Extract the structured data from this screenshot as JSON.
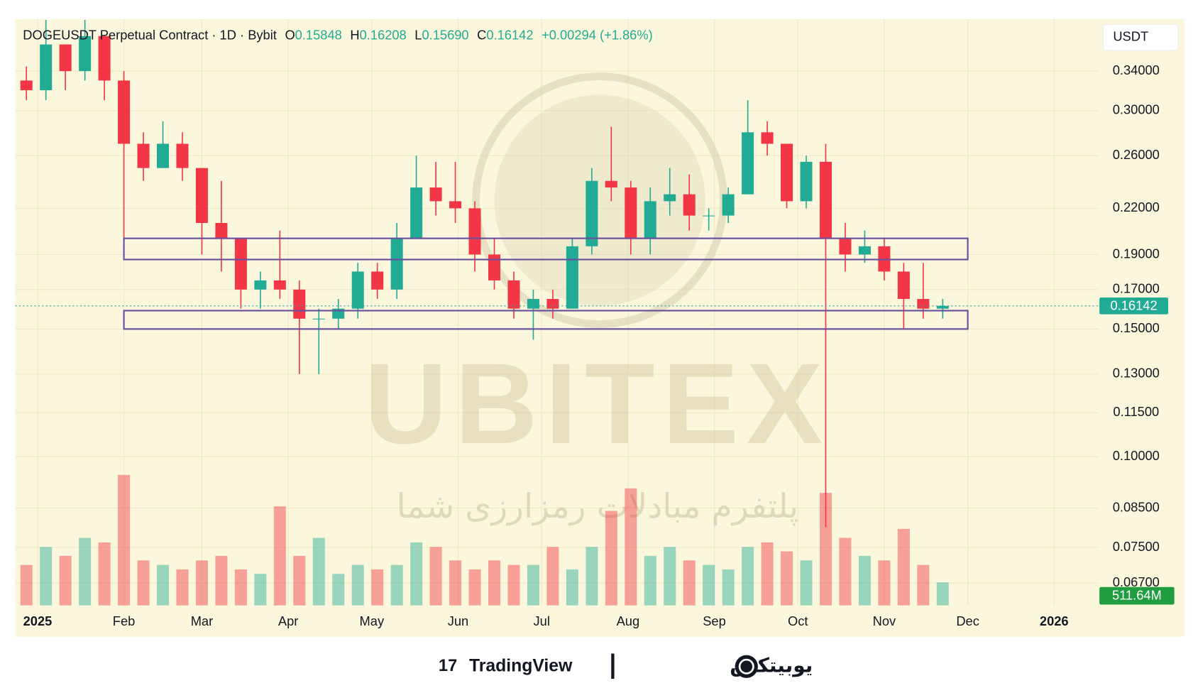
{
  "chart_data": {
    "type": "candlestick",
    "header": {
      "symbol": "DOGEUSDT Perpetual Contract · 1D · Bybit",
      "o": "O",
      "o_value": "0.15848",
      "h": "H",
      "h_value": "0.16208",
      "l": "L",
      "l_value": "0.15690",
      "c": "C",
      "c_value": "0.16142",
      "change": "+0.00294 (+1.86%)"
    },
    "currency": "USDT",
    "watermark": {
      "brand": "UBITEX",
      "tagline": "پلتفرم مبادلات رمزارزی شما"
    },
    "footer": {
      "left": "TradingView",
      "right": "یوبیتکس"
    },
    "x": [
      -4,
      3,
      10,
      17,
      24,
      31,
      38,
      45,
      52,
      59,
      66,
      73,
      80,
      87,
      94,
      101,
      108,
      115,
      122,
      129,
      136,
      143,
      150,
      157,
      164,
      171,
      178,
      185,
      192,
      199,
      206,
      213,
      220,
      227,
      234,
      241,
      248,
      255,
      262,
      269,
      276,
      283,
      290,
      297,
      304,
      311,
      318,
      325
    ],
    "open": [
      0.33,
      0.32,
      0.37,
      0.34,
      0.38,
      0.33,
      0.27,
      0.25,
      0.27,
      0.25,
      0.21,
      0.2,
      0.17,
      0.175,
      0.17,
      0.155,
      0.155,
      0.16,
      0.18,
      0.17,
      0.2,
      0.235,
      0.225,
      0.22,
      0.19,
      0.175,
      0.16,
      0.165,
      0.16,
      0.195,
      0.24,
      0.235,
      0.2,
      0.225,
      0.23,
      0.215,
      0.215,
      0.23,
      0.28,
      0.27,
      0.225,
      0.255,
      0.2,
      0.19,
      0.195,
      0.18,
      0.165,
      0.16
    ],
    "high": [
      0.345,
      0.4,
      0.37,
      0.4,
      0.38,
      0.34,
      0.28,
      0.29,
      0.28,
      0.25,
      0.24,
      0.2,
      0.18,
      0.205,
      0.175,
      0.16,
      0.165,
      0.185,
      0.185,
      0.21,
      0.26,
      0.255,
      0.255,
      0.225,
      0.2,
      0.18,
      0.17,
      0.17,
      0.2,
      0.25,
      0.285,
      0.24,
      0.235,
      0.25,
      0.245,
      0.22,
      0.235,
      0.31,
      0.29,
      0.27,
      0.26,
      0.27,
      0.21,
      0.205,
      0.2,
      0.185,
      0.185,
      0.165
    ],
    "low": [
      0.31,
      0.31,
      0.32,
      0.33,
      0.31,
      0.2,
      0.24,
      0.25,
      0.24,
      0.19,
      0.18,
      0.16,
      0.16,
      0.165,
      0.13,
      0.13,
      0.15,
      0.155,
      0.165,
      0.165,
      0.2,
      0.215,
      0.21,
      0.18,
      0.17,
      0.155,
      0.145,
      0.155,
      0.16,
      0.19,
      0.225,
      0.19,
      0.19,
      0.215,
      0.205,
      0.205,
      0.21,
      0.23,
      0.26,
      0.22,
      0.22,
      0.08,
      0.18,
      0.185,
      0.175,
      0.15,
      0.155,
      0.155
    ],
    "close": [
      0.32,
      0.37,
      0.34,
      0.38,
      0.33,
      0.27,
      0.25,
      0.27,
      0.25,
      0.21,
      0.2,
      0.17,
      0.175,
      0.17,
      0.155,
      0.155,
      0.16,
      0.18,
      0.17,
      0.2,
      0.235,
      0.225,
      0.22,
      0.19,
      0.175,
      0.16,
      0.165,
      0.16,
      0.195,
      0.24,
      0.235,
      0.2,
      0.225,
      0.23,
      0.215,
      0.215,
      0.23,
      0.28,
      0.27,
      0.225,
      0.255,
      0.2,
      0.19,
      0.195,
      0.18,
      0.165,
      0.16,
      0.16142
    ],
    "volume": {
      "values": [
        900,
        1300,
        1100,
        1500,
        1400,
        2900,
        1000,
        900,
        800,
        1000,
        1100,
        800,
        700,
        2200,
        1100,
        1500,
        700,
        900,
        800,
        900,
        1400,
        1300,
        1000,
        800,
        1000,
        900,
        900,
        1300,
        800,
        1300,
        2100,
        2600,
        1100,
        1300,
        1000,
        900,
        800,
        1300,
        1400,
        1200,
        1000,
        2500,
        1500,
        1100,
        1000,
        1700,
        900,
        511.64
      ],
      "value_labels": [
        null,
        null,
        null,
        null,
        null,
        null,
        null,
        null,
        null,
        null,
        null,
        null,
        null,
        null,
        null,
        null,
        null,
        null,
        null,
        null,
        null,
        null,
        null,
        null,
        null,
        null,
        null,
        null,
        null,
        null,
        null,
        null,
        null,
        null,
        null,
        null,
        null,
        null,
        null,
        null,
        null,
        null,
        null,
        null,
        null,
        null,
        null,
        "511.64M"
      ],
      "vlim": [
        0,
        4500
      ]
    },
    "up_color": "#22ab94",
    "down_color": "#f23645",
    "zones": [
      {
        "x": [
          31,
          334
        ],
        "y": [
          0.187,
          0.2
        ]
      },
      {
        "x": [
          31,
          334
        ],
        "y": [
          0.15,
          0.159
        ]
      }
    ],
    "zone_color": "#6a4fa0",
    "log_scale": true,
    "grid": true,
    "xlim": [
      -8,
      381
    ],
    "xticks": [
      {
        "value": 0,
        "label": "2025"
      },
      {
        "value": 31,
        "label": "Feb"
      },
      {
        "value": 59,
        "label": "Mar"
      },
      {
        "value": 90,
        "label": "Apr"
      },
      {
        "value": 120,
        "label": "May"
      },
      {
        "value": 151,
        "label": "Jun"
      },
      {
        "value": 181,
        "label": "Jul"
      },
      {
        "value": 212,
        "label": "Aug"
      },
      {
        "value": 243,
        "label": "Sep"
      },
      {
        "value": 273,
        "label": "Oct"
      },
      {
        "value": 304,
        "label": "Nov"
      },
      {
        "value": 334,
        "label": "Dec"
      },
      {
        "value": 365,
        "label": "2026"
      }
    ],
    "ylim": [
      0.0624,
      0.401
    ],
    "yticks": [
      {
        "value": 0.34,
        "label": "0.34000"
      },
      {
        "value": 0.3,
        "label": "0.30000"
      },
      {
        "value": 0.26,
        "label": "0.26000"
      },
      {
        "value": 0.22,
        "label": "0.22000"
      },
      {
        "value": 0.19,
        "label": "0.19000"
      },
      {
        "value": 0.17,
        "label": "0.17000"
      },
      {
        "value": 0.15,
        "label": "0.15000"
      },
      {
        "value": 0.13,
        "label": "0.13000"
      },
      {
        "value": 0.115,
        "label": "0.11500"
      },
      {
        "value": 0.1,
        "label": "0.10000"
      },
      {
        "value": 0.085,
        "label": "0.08500"
      },
      {
        "value": 0.075,
        "label": "0.07500"
      },
      {
        "value": 0.067,
        "label": "0.06700"
      }
    ]
  }
}
